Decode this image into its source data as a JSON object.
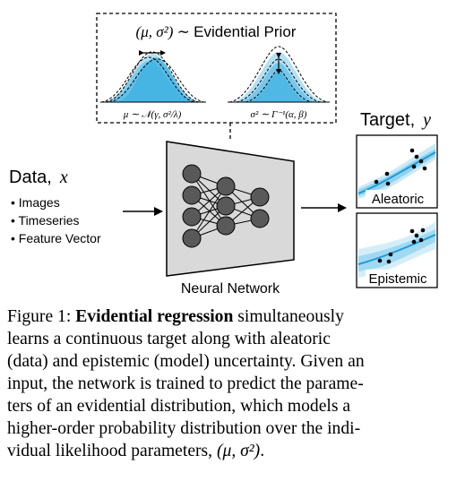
{
  "prior": {
    "title_math": "(μ, σ²)",
    "title_sep": "∼",
    "title_text": "Evidential Prior",
    "mu_label": "μ ∼ 𝒩(γ, σ²/λ)",
    "sigma_label": "σ² ∼ Γ⁻¹(α, β)"
  },
  "input": {
    "title_text": "Data,",
    "title_var": "x",
    "items": [
      "• Images",
      "• Timeseries",
      "• Feature Vector"
    ]
  },
  "network": {
    "label": "Neural Network"
  },
  "target": {
    "title_text": "Target,",
    "title_var": "y",
    "panels": [
      {
        "label": "Aleatoric"
      },
      {
        "label": "Epistemic"
      }
    ]
  },
  "colors": {
    "blue": "#29a9e0",
    "light_blue": "#bfe6f7",
    "network_fill": "#d9d9d9",
    "node_fill": "#595959"
  },
  "caption": {
    "prefix": "Figure 1: ",
    "bold": "Evidential regression",
    "line1_rest": " simultaneously",
    "line2": "learns a continuous target along with aleatoric",
    "line3": "(data) and epistemic (model) uncertainty. Given an",
    "line4": "input, the network is trained to predict the parame-",
    "line5": "ters of an evidential distribution, which models a",
    "line6": "higher-order probability distribution over the indi-",
    "line7_text": "vidual likelihood parameters, ",
    "line7_math": "(μ, σ²)",
    "line7_end": "."
  }
}
